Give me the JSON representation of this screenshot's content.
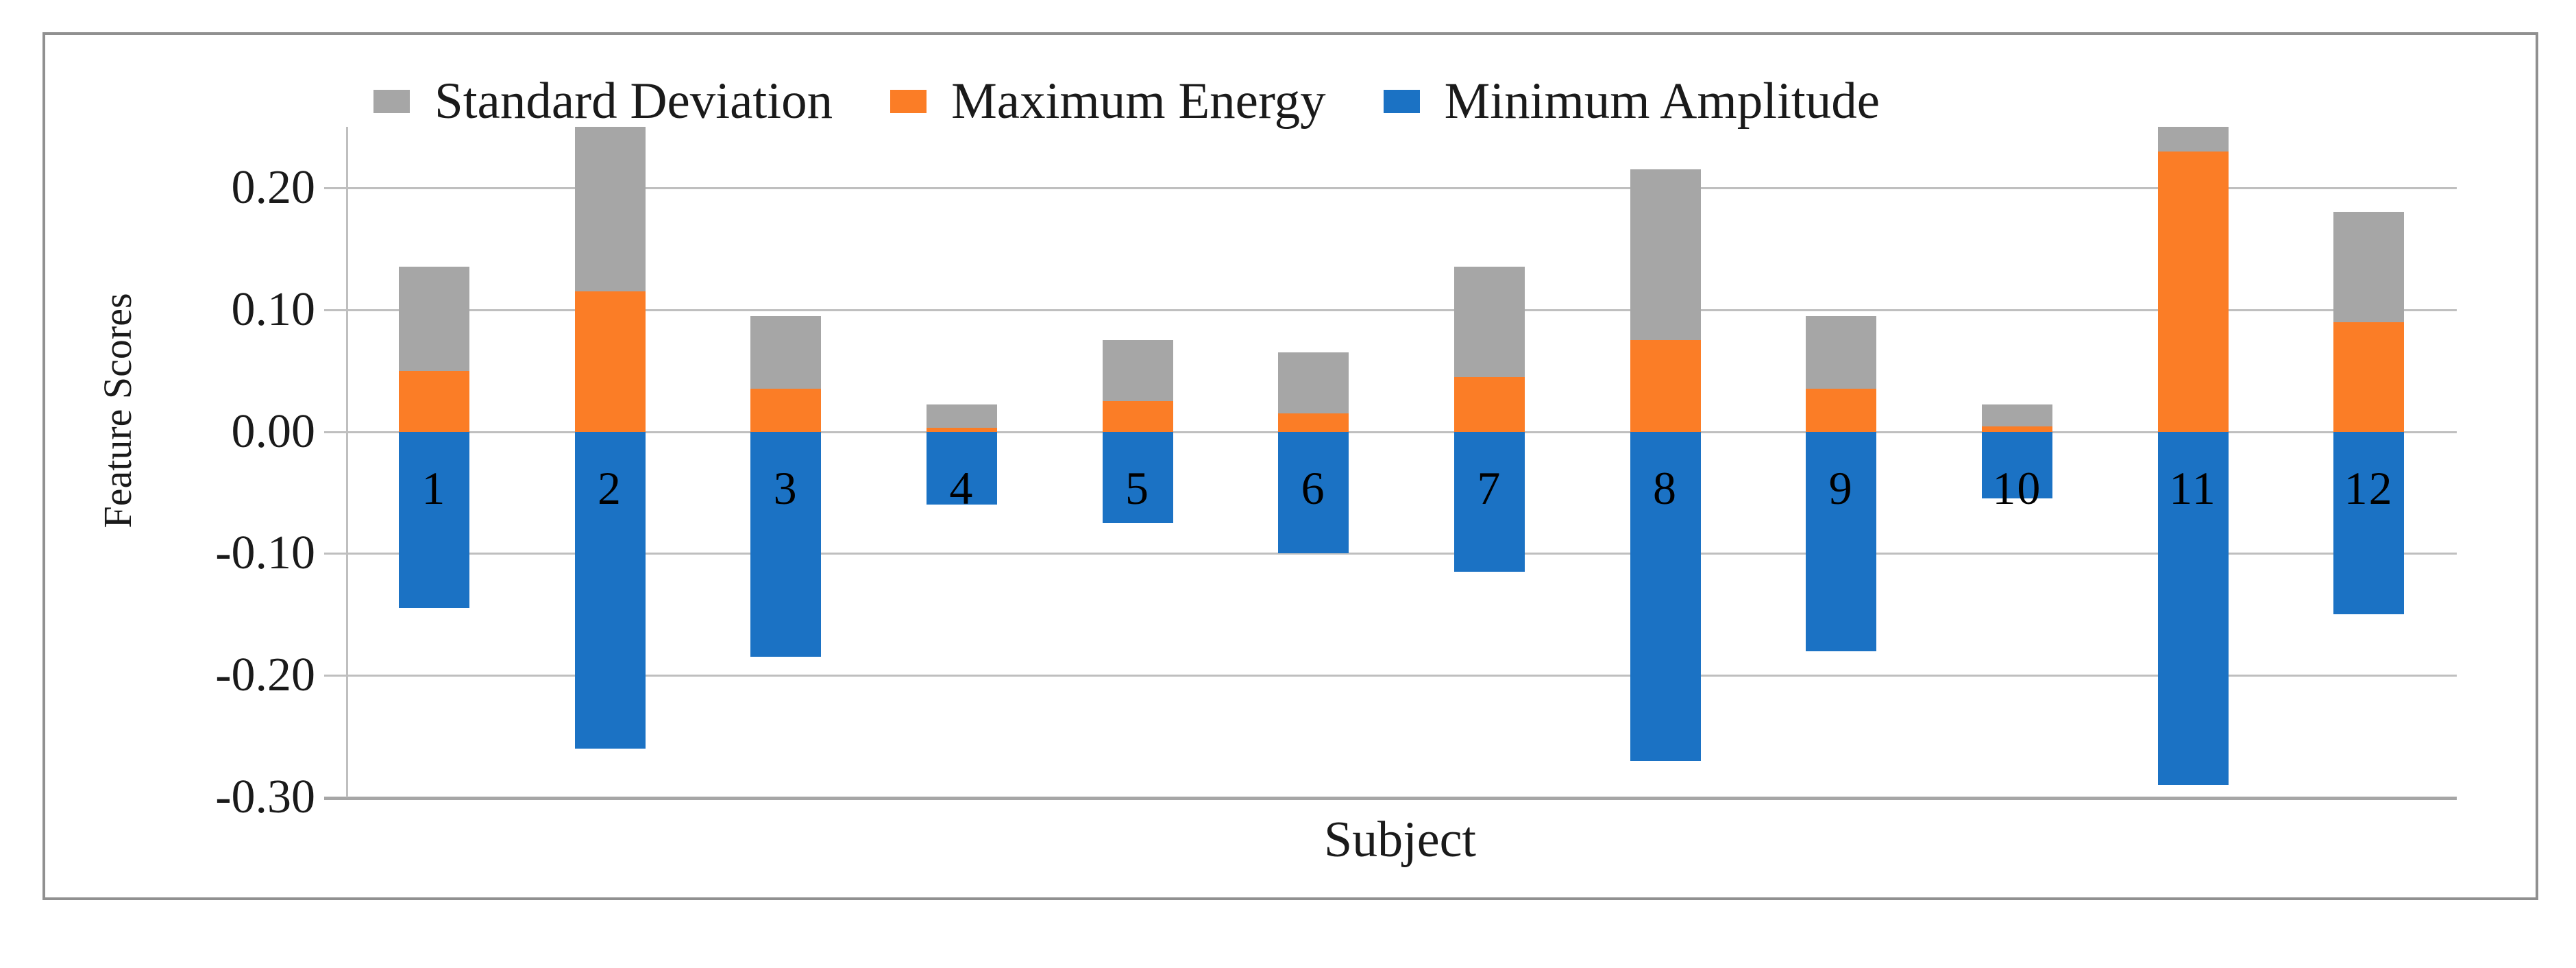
{
  "figure": {
    "background": "#FFFFFF",
    "border_color": "#909090"
  },
  "colors": {
    "gridline": "#BFBFBF",
    "axis_line": "#A6A6A6",
    "text": "#1A1A1A",
    "blue": "#1B72C4",
    "orange": "#FB7D26",
    "gray": "#A6A6A6"
  },
  "chart_data": {
    "type": "bar",
    "stacked": true,
    "orientation": "vertical",
    "title": "",
    "xlabel": "Subject",
    "ylabel": "Feature Scores",
    "categories": [
      "1",
      "2",
      "3",
      "4",
      "5",
      "6",
      "7",
      "8",
      "9",
      "10",
      "11",
      "12"
    ],
    "series": [
      {
        "name": "Minimum Amplitude",
        "color": "#1B72C4",
        "values": [
          -0.145,
          -0.26,
          -0.185,
          -0.06,
          -0.075,
          -0.1,
          -0.115,
          -0.27,
          -0.18,
          -0.055,
          -0.29,
          -0.15
        ]
      },
      {
        "name": "Maximum Energy",
        "color": "#FB7D26",
        "values": [
          0.05,
          0.115,
          0.035,
          0.003,
          0.025,
          0.015,
          0.045,
          0.075,
          0.035,
          0.004,
          0.23,
          0.09
        ]
      },
      {
        "name": "Standard Deviation",
        "color": "#A6A6A6",
        "values": [
          0.085,
          0.135,
          0.06,
          0.019,
          0.05,
          0.05,
          0.09,
          0.14,
          0.06,
          0.018,
          0.02,
          0.09
        ]
      }
    ],
    "legend": [
      {
        "label": "Standard Deviation",
        "color": "#A6A6A6"
      },
      {
        "label": "Maximum Energy",
        "color": "#FB7D26"
      },
      {
        "label": "Minimum Amplitude",
        "color": "#1B72C4"
      }
    ],
    "legend_position": "top",
    "ylim": [
      -0.3,
      0.25
    ],
    "yticks": [
      {
        "value": 0.2,
        "label": "0.20"
      },
      {
        "value": 0.1,
        "label": "0.10"
      },
      {
        "value": 0.0,
        "label": "0.00"
      },
      {
        "value": -0.1,
        "label": "-0.10"
      },
      {
        "value": -0.2,
        "label": "-0.20"
      },
      {
        "value": -0.3,
        "label": "-0.30"
      }
    ],
    "grid": true,
    "category_labels_inside_bars": true
  }
}
